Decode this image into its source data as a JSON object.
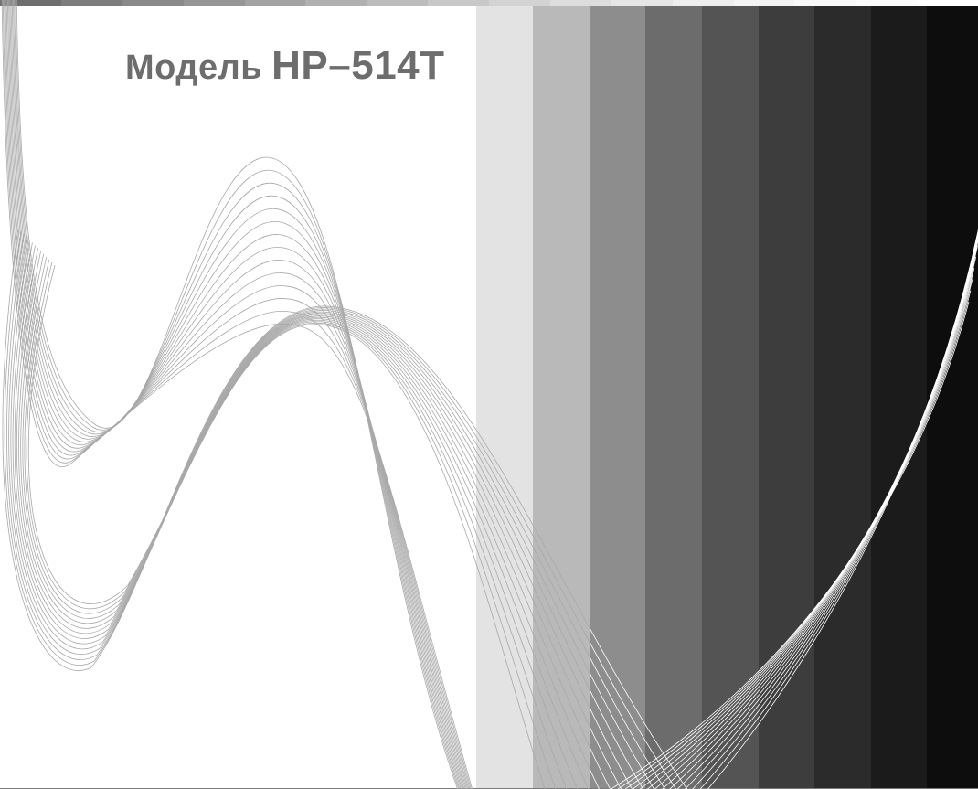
{
  "cover": {
    "title_word": "Модель",
    "title_model": "HP–514T"
  },
  "colors": {
    "background": "#ffffff",
    "title": "#6d6d6d",
    "curve_on_light": "#a8a8a8",
    "curve_on_dark": "#ffffff",
    "bands": [
      "#e3e3e3",
      "#b9b9b9",
      "#8d8d8d",
      "#6c6c6c",
      "#545454",
      "#3d3d3d",
      "#2b2b2b",
      "#1b1b1b",
      "#0d0d0d"
    ],
    "top_strip": [
      "#6e6e6e",
      "#7c7c7c",
      "#898989",
      "#969696",
      "#a3a3a3",
      "#b0b0b0",
      "#bcbcbc",
      "#c8c8c8",
      "#d3d3d3",
      "#dddddd",
      "#e6e6e6",
      "#eeeeee",
      "#f4f4f4",
      "#f9f9f9",
      "#fcfcfc",
      "#ffffff"
    ]
  }
}
